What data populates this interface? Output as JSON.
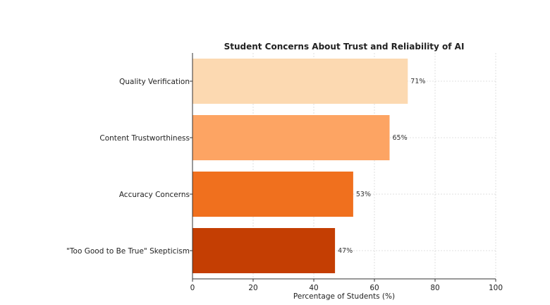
{
  "chart_data": {
    "type": "bar",
    "orientation": "horizontal",
    "title": "Student Concerns About Trust and Reliability of AI",
    "xlabel": "Percentage of Students (%)",
    "ylabel": "",
    "xlim": [
      0,
      100
    ],
    "xticks": [
      0,
      20,
      40,
      60,
      80,
      100
    ],
    "grid": true,
    "categories": [
      "Quality Verification",
      "Content Trustworthiness",
      "Accuracy Concerns",
      "\"Too Good to Be True\" Skepticism"
    ],
    "values": [
      71,
      65,
      53,
      47
    ],
    "data_labels": [
      "71%",
      "65%",
      "53%",
      "47%"
    ],
    "colors": [
      "#fcd9b1",
      "#fda463",
      "#f0701e",
      "#c43e03"
    ]
  }
}
